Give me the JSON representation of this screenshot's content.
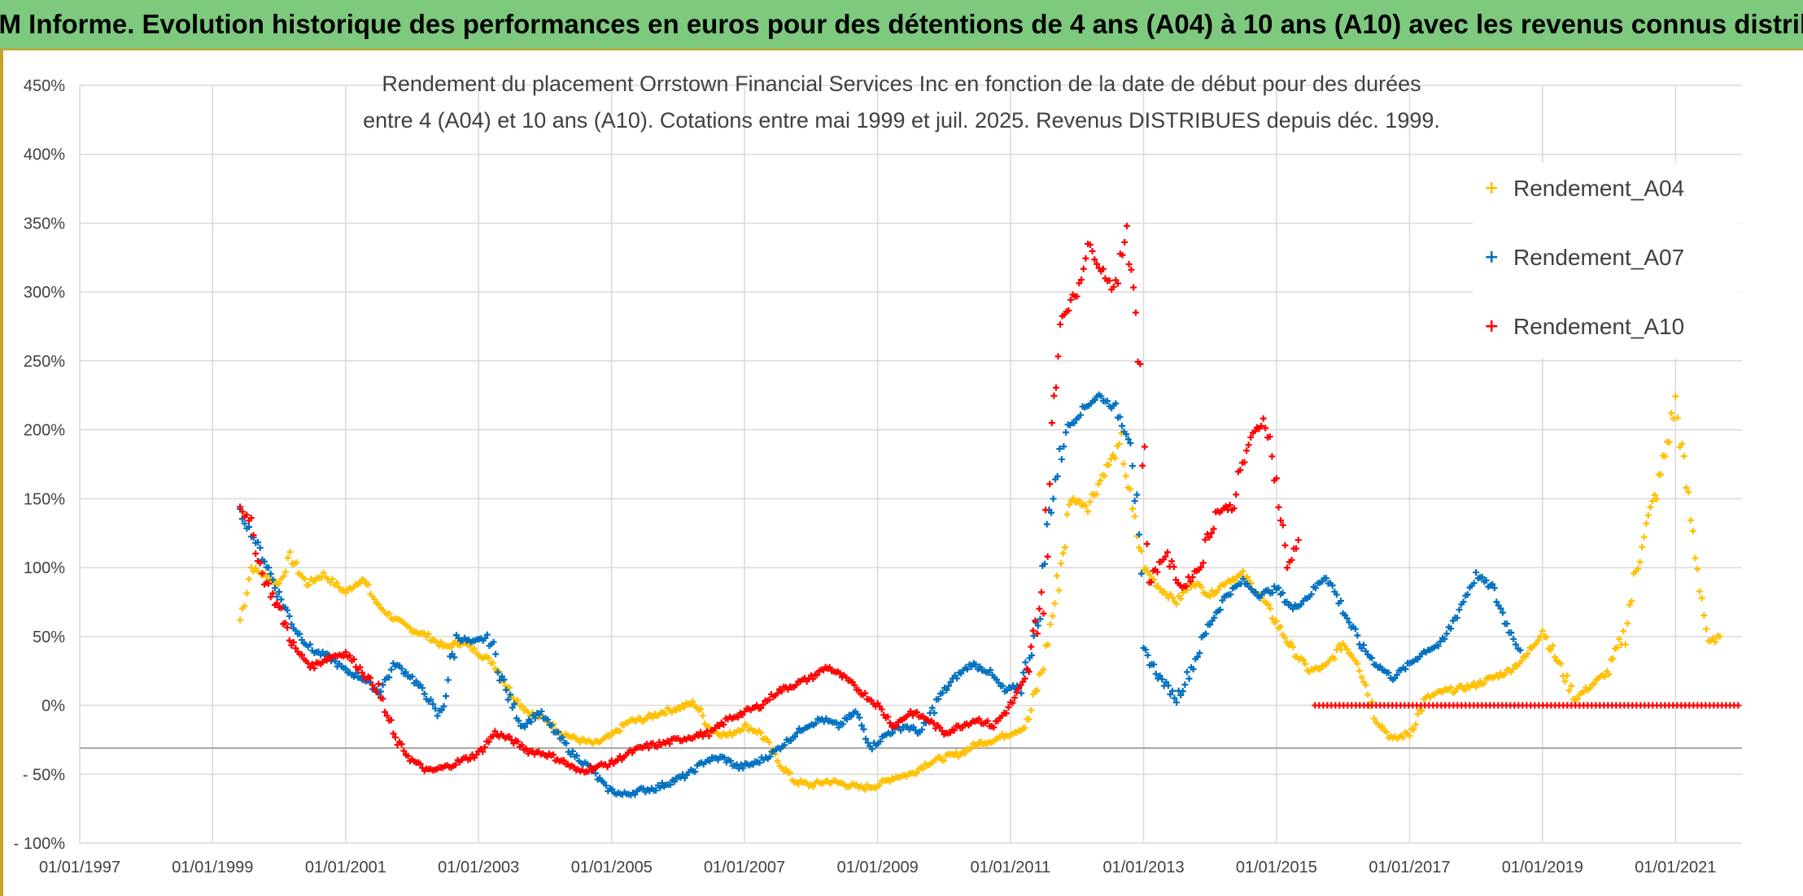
{
  "banner": {
    "title": "ADAM Informe. Evolution historique des performances en euros pour des détentions de 4 ans (A04) à 10 ans (A10) avec les revenus connus distribués"
  },
  "colors": {
    "banner_bg": "#7dc97d",
    "a04": "#ffc000",
    "a07": "#0070c0",
    "a10": "#ff0000",
    "grid": "#d9d9d9",
    "axis_text": "#404040"
  },
  "chart_data": {
    "type": "scatter",
    "title_line1": "Rendement du placement Orrstown Financial Services Inc en fonction de la date de début pour des durées",
    "title_line2": "entre 4 (A04) et 10 ans (A10). Cotations entre mai 1999 et juil. 2025. Revenus DISTRIBUES depuis déc. 1999.",
    "x_axis": {
      "type": "date",
      "range": [
        "1997-01-01",
        "2022-01-01"
      ],
      "tick_labels": [
        "01/01/1997",
        "01/01/1999",
        "01/01/2001",
        "01/01/2003",
        "01/01/2005",
        "01/01/2007",
        "01/01/2009",
        "01/01/2011",
        "01/01/2013",
        "01/01/2015",
        "01/01/2017",
        "01/01/2019",
        "01/01/2021"
      ]
    },
    "y_axis": {
      "range": [
        -100,
        450
      ],
      "unit": "%",
      "tick_values": [
        -100,
        -50,
        0,
        50,
        100,
        150,
        200,
        250,
        300,
        350,
        400,
        450
      ],
      "tick_labels": [
        "- 100%",
        "- 50%",
        "0%",
        "50%",
        "100%",
        "150%",
        "200%",
        "250%",
        "300%",
        "350%",
        "400%",
        "450%"
      ]
    },
    "grid": true,
    "reference_line_y": -31,
    "legend_position": "top-right",
    "series": [
      {
        "name": "Rendement_A04",
        "color": "#ffc000",
        "points": [
          [
            "1999-06-01",
            62
          ],
          [
            "1999-08-01",
            100
          ],
          [
            "1999-10-01",
            95
          ],
          [
            "2000-01-01",
            88
          ],
          [
            "2000-03-01",
            108
          ],
          [
            "2000-06-01",
            88
          ],
          [
            "2000-09-01",
            95
          ],
          [
            "2001-01-01",
            82
          ],
          [
            "2001-04-01",
            92
          ],
          [
            "2001-07-01",
            72
          ],
          [
            "2001-10-01",
            62
          ],
          [
            "2002-01-01",
            55
          ],
          [
            "2002-04-01",
            50
          ],
          [
            "2002-07-01",
            42
          ],
          [
            "2002-10-01",
            46
          ],
          [
            "2003-01-01",
            38
          ],
          [
            "2003-04-01",
            30
          ],
          [
            "2003-07-01",
            8
          ],
          [
            "2003-10-01",
            -5
          ],
          [
            "2004-01-01",
            -10
          ],
          [
            "2004-04-01",
            -20
          ],
          [
            "2004-07-01",
            -25
          ],
          [
            "2004-10-01",
            -28
          ],
          [
            "2005-01-01",
            -22
          ],
          [
            "2005-04-01",
            -12
          ],
          [
            "2005-07-01",
            -10
          ],
          [
            "2005-10-01",
            -5
          ],
          [
            "2006-01-01",
            -2
          ],
          [
            "2006-04-01",
            2
          ],
          [
            "2006-07-01",
            -18
          ],
          [
            "2006-10-01",
            -22
          ],
          [
            "2007-01-01",
            -15
          ],
          [
            "2007-04-01",
            -20
          ],
          [
            "2007-07-01",
            -40
          ],
          [
            "2007-10-01",
            -55
          ],
          [
            "2008-01-01",
            -58
          ],
          [
            "2008-04-01",
            -55
          ],
          [
            "2008-07-01",
            -57
          ],
          [
            "2008-10-01",
            -60
          ],
          [
            "2009-01-01",
            -58
          ],
          [
            "2009-04-01",
            -52
          ],
          [
            "2009-07-01",
            -50
          ],
          [
            "2009-10-01",
            -42
          ],
          [
            "2010-01-01",
            -38
          ],
          [
            "2010-04-01",
            -35
          ],
          [
            "2010-07-01",
            -28
          ],
          [
            "2010-10-01",
            -25
          ],
          [
            "2011-01-01",
            -20
          ],
          [
            "2011-04-01",
            -15
          ],
          [
            "2011-07-01",
            30
          ],
          [
            "2011-09-01",
            75
          ],
          [
            "2011-12-01",
            150
          ],
          [
            "2012-03-01",
            145
          ],
          [
            "2012-06-01",
            170
          ],
          [
            "2012-09-01",
            190
          ],
          [
            "2012-11-01",
            140
          ],
          [
            "2013-01-01",
            100
          ],
          [
            "2013-04-01",
            85
          ],
          [
            "2013-07-01",
            75
          ],
          [
            "2013-10-01",
            90
          ],
          [
            "2014-01-01",
            80
          ],
          [
            "2014-04-01",
            90
          ],
          [
            "2014-07-01",
            95
          ],
          [
            "2014-10-01",
            80
          ],
          [
            "2015-01-01",
            60
          ],
          [
            "2015-04-01",
            40
          ],
          [
            "2015-07-01",
            25
          ],
          [
            "2015-10-01",
            28
          ],
          [
            "2016-01-01",
            45
          ],
          [
            "2016-04-01",
            30
          ],
          [
            "2016-07-01",
            -10
          ],
          [
            "2016-10-01",
            -25
          ],
          [
            "2017-01-01",
            -20
          ],
          [
            "2017-04-01",
            5
          ],
          [
            "2017-07-01",
            10
          ],
          [
            "2017-10-01",
            12
          ],
          [
            "2018-01-01",
            15
          ],
          [
            "2018-04-01",
            20
          ],
          [
            "2018-07-01",
            25
          ],
          [
            "2018-10-01",
            35
          ],
          [
            "2019-01-01",
            55
          ],
          [
            "2019-04-01",
            30
          ],
          [
            "2019-07-01",
            5
          ],
          [
            "2019-10-01",
            15
          ],
          [
            "2020-01-01",
            25
          ],
          [
            "2020-04-01",
            55
          ],
          [
            "2020-07-01",
            120
          ],
          [
            "2020-10-01",
            160
          ],
          [
            "2021-01-01",
            220
          ],
          [
            "2021-03-01",
            160
          ],
          [
            "2021-05-01",
            100
          ],
          [
            "2021-07-01",
            45
          ],
          [
            "2021-09-01",
            50
          ]
        ]
      },
      {
        "name": "Rendement_A07",
        "color": "#0070c0",
        "points": [
          [
            "1999-06-01",
            140
          ],
          [
            "1999-08-01",
            125
          ],
          [
            "1999-10-01",
            110
          ],
          [
            "2000-01-01",
            80
          ],
          [
            "2000-04-01",
            55
          ],
          [
            "2000-07-01",
            40
          ],
          [
            "2000-10-01",
            35
          ],
          [
            "2001-01-01",
            25
          ],
          [
            "2001-04-01",
            20
          ],
          [
            "2001-07-01",
            10
          ],
          [
            "2001-10-01",
            30
          ],
          [
            "2002-01-01",
            20
          ],
          [
            "2002-04-01",
            5
          ],
          [
            "2002-06-01",
            -10
          ],
          [
            "2002-09-01",
            50
          ],
          [
            "2002-12-01",
            45
          ],
          [
            "2003-03-01",
            50
          ],
          [
            "2003-06-01",
            10
          ],
          [
            "2003-09-01",
            -15
          ],
          [
            "2003-12-01",
            -5
          ],
          [
            "2004-03-01",
            -20
          ],
          [
            "2004-06-01",
            -35
          ],
          [
            "2004-09-01",
            -45
          ],
          [
            "2004-12-01",
            -60
          ],
          [
            "2005-03-01",
            -65
          ],
          [
            "2005-06-01",
            -62
          ],
          [
            "2005-09-01",
            -60
          ],
          [
            "2005-12-01",
            -55
          ],
          [
            "2006-03-01",
            -50
          ],
          [
            "2006-06-01",
            -40
          ],
          [
            "2006-09-01",
            -38
          ],
          [
            "2006-12-01",
            -45
          ],
          [
            "2007-03-01",
            -42
          ],
          [
            "2007-06-01",
            -35
          ],
          [
            "2007-09-01",
            -25
          ],
          [
            "2007-12-01",
            -15
          ],
          [
            "2008-03-01",
            -10
          ],
          [
            "2008-06-01",
            -15
          ],
          [
            "2008-09-01",
            -5
          ],
          [
            "2008-12-01",
            -30
          ],
          [
            "2009-03-01",
            -20
          ],
          [
            "2009-06-01",
            -15
          ],
          [
            "2009-09-01",
            -20
          ],
          [
            "2009-12-01",
            5
          ],
          [
            "2010-03-01",
            20
          ],
          [
            "2010-06-01",
            30
          ],
          [
            "2010-09-01",
            25
          ],
          [
            "2010-12-01",
            10
          ],
          [
            "2011-03-01",
            15
          ],
          [
            "2011-06-01",
            60
          ],
          [
            "2011-08-01",
            140
          ],
          [
            "2011-11-01",
            200
          ],
          [
            "2012-02-01",
            215
          ],
          [
            "2012-05-01",
            225
          ],
          [
            "2012-08-01",
            215
          ],
          [
            "2012-11-01",
            190
          ],
          [
            "2013-01-01",
            40
          ],
          [
            "2013-04-01",
            20
          ],
          [
            "2013-07-01",
            5
          ],
          [
            "2013-10-01",
            30
          ],
          [
            "2014-01-01",
            60
          ],
          [
            "2014-04-01",
            80
          ],
          [
            "2014-07-01",
            90
          ],
          [
            "2014-10-01",
            80
          ],
          [
            "2015-01-01",
            85
          ],
          [
            "2015-04-01",
            70
          ],
          [
            "2015-07-01",
            80
          ],
          [
            "2015-10-01",
            95
          ],
          [
            "2016-01-01",
            70
          ],
          [
            "2016-04-01",
            45
          ],
          [
            "2016-07-01",
            30
          ],
          [
            "2016-10-01",
            20
          ],
          [
            "2017-01-01",
            30
          ],
          [
            "2017-04-01",
            40
          ],
          [
            "2017-07-01",
            45
          ],
          [
            "2017-10-01",
            70
          ],
          [
            "2018-01-01",
            95
          ],
          [
            "2018-04-01",
            85
          ],
          [
            "2018-07-01",
            55
          ],
          [
            "2018-09-01",
            40
          ]
        ]
      },
      {
        "name": "Rendement_A10",
        "color": "#ff0000",
        "points": [
          [
            "1999-06-01",
            145
          ],
          [
            "1999-08-01",
            130
          ],
          [
            "1999-10-01",
            95
          ],
          [
            "2000-01-01",
            70
          ],
          [
            "2000-04-01",
            40
          ],
          [
            "2000-07-01",
            28
          ],
          [
            "2000-10-01",
            35
          ],
          [
            "2001-01-01",
            38
          ],
          [
            "2001-04-01",
            25
          ],
          [
            "2001-07-01",
            10
          ],
          [
            "2001-10-01",
            -25
          ],
          [
            "2002-01-01",
            -40
          ],
          [
            "2002-04-01",
            -48
          ],
          [
            "2002-07-01",
            -45
          ],
          [
            "2002-10-01",
            -40
          ],
          [
            "2003-01-01",
            -35
          ],
          [
            "2003-04-01",
            -20
          ],
          [
            "2003-07-01",
            -25
          ],
          [
            "2003-10-01",
            -33
          ],
          [
            "2004-01-01",
            -35
          ],
          [
            "2004-04-01",
            -40
          ],
          [
            "2004-07-01",
            -48
          ],
          [
            "2004-10-01",
            -45
          ],
          [
            "2005-01-01",
            -42
          ],
          [
            "2005-04-01",
            -35
          ],
          [
            "2005-07-01",
            -30
          ],
          [
            "2005-10-01",
            -28
          ],
          [
            "2006-01-01",
            -25
          ],
          [
            "2006-04-01",
            -22
          ],
          [
            "2006-07-01",
            -20
          ],
          [
            "2006-10-01",
            -10
          ],
          [
            "2007-01-01",
            -5
          ],
          [
            "2007-04-01",
            0
          ],
          [
            "2007-07-01",
            10
          ],
          [
            "2007-10-01",
            15
          ],
          [
            "2008-01-01",
            20
          ],
          [
            "2008-04-01",
            28
          ],
          [
            "2008-07-01",
            20
          ],
          [
            "2008-10-01",
            10
          ],
          [
            "2009-01-01",
            0
          ],
          [
            "2009-04-01",
            -15
          ],
          [
            "2009-07-01",
            -5
          ],
          [
            "2009-10-01",
            -10
          ],
          [
            "2010-01-01",
            -20
          ],
          [
            "2010-04-01",
            -15
          ],
          [
            "2010-07-01",
            -10
          ],
          [
            "2010-10-01",
            -15
          ],
          [
            "2011-01-01",
            0
          ],
          [
            "2011-04-01",
            20
          ],
          [
            "2011-07-01",
            90
          ],
          [
            "2011-10-01",
            280
          ],
          [
            "2012-01-01",
            300
          ],
          [
            "2012-03-01",
            335
          ],
          [
            "2012-05-01",
            320
          ],
          [
            "2012-08-01",
            300
          ],
          [
            "2012-10-01",
            350
          ],
          [
            "2012-12-01",
            270
          ],
          [
            "2013-02-01",
            90
          ],
          [
            "2013-05-01",
            110
          ],
          [
            "2013-08-01",
            85
          ],
          [
            "2013-11-01",
            100
          ],
          [
            "2014-02-01",
            140
          ],
          [
            "2014-05-01",
            145
          ],
          [
            "2014-08-01",
            190
          ],
          [
            "2014-11-01",
            210
          ],
          [
            "2015-01-01",
            160
          ],
          [
            "2015-03-01",
            100
          ],
          [
            "2015-05-01",
            120
          ]
        ]
      },
      {
        "name": "Rendement_A10",
        "color": "#ff0000",
        "points": [
          [
            "2015-08-01",
            0
          ],
          [
            "2021-12-31",
            0
          ]
        ]
      }
    ]
  },
  "legend": {
    "items": [
      {
        "label": "Rendement_A04",
        "marker": "+",
        "color": "#ffc000"
      },
      {
        "label": "Rendement_A07",
        "marker": "+",
        "color": "#0070c0"
      },
      {
        "label": "Rendement_A10",
        "marker": "+",
        "color": "#ff0000"
      }
    ]
  }
}
